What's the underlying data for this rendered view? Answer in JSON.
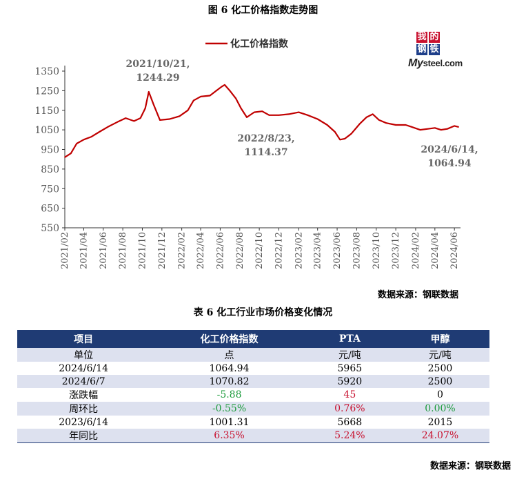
{
  "chart_title": "图 6 化工价格指数走势图",
  "logo": {
    "chars": [
      "我",
      "的",
      "钢",
      "铁"
    ],
    "brand_prefix": "My",
    "brand_suffix": "steel.com"
  },
  "source_label_chart": "数据来源：钢联数据",
  "table_title": "表 6 化工行业市场价格变化情况",
  "source_label_table": "数据来源：钢联数据",
  "colors": {
    "line": "#c00000",
    "header_bg": "#1f3b74",
    "alt_row": "#dde1ef",
    "up": "#c8102e",
    "down": "#1a9a3a"
  },
  "chart_data": {
    "type": "line",
    "legend": "化工价格指数",
    "legend_position": "top",
    "grid": false,
    "ylim": [
      550,
      1350
    ],
    "yticks": [
      550,
      650,
      750,
      850,
      950,
      1050,
      1150,
      1250,
      1350
    ],
    "xlim": [
      "2021/02",
      "2024/06/20"
    ],
    "xticks": [
      "2021/02",
      "2021/04",
      "2021/06",
      "2021/08",
      "2021/10",
      "2021/12",
      "2022/02",
      "2022/04",
      "2022/06",
      "2022/08",
      "2022/10",
      "2022/12",
      "2023/02",
      "2023/04",
      "2023/06",
      "2023/08",
      "2023/10",
      "2023/12",
      "2024/02",
      "2024/04",
      "2024/06"
    ],
    "series": [
      {
        "name": "化工价格指数",
        "x": [
          "2021/02/01",
          "2021/02/20",
          "2021/03/10",
          "2021/04/01",
          "2021/04/25",
          "2021/05/20",
          "2021/06/15",
          "2021/07/15",
          "2021/08/10",
          "2021/09/05",
          "2021/09/25",
          "2021/10/10",
          "2021/10/21",
          "2021/11/05",
          "2021/11/25",
          "2021/12/25",
          "2022/01/25",
          "2022/02/20",
          "2022/03/10",
          "2022/04/01",
          "2022/04/30",
          "2022/05/20",
          "2022/06/05",
          "2022/06/15",
          "2022/07/01",
          "2022/07/20",
          "2022/08/05",
          "2022/08/23",
          "2022/09/15",
          "2022/10/10",
          "2022/11/01",
          "2022/12/01",
          "2023/01/01",
          "2023/02/01",
          "2023/03/01",
          "2023/04/01",
          "2023/05/01",
          "2023/05/25",
          "2023/06/10",
          "2023/06/25",
          "2023/07/15",
          "2023/08/10",
          "2023/09/01",
          "2023/09/20",
          "2023/10/10",
          "2023/11/01",
          "2023/12/01",
          "2024/01/01",
          "2024/01/20",
          "2024/02/15",
          "2024/03/10",
          "2024/04/01",
          "2024/04/20",
          "2024/05/10",
          "2024/06/01",
          "2024/06/14"
        ],
        "values": [
          910,
          930,
          980,
          1000,
          1015,
          1040,
          1065,
          1090,
          1110,
          1095,
          1110,
          1160,
          1244.29,
          1180,
          1100,
          1105,
          1120,
          1150,
          1200,
          1220,
          1225,
          1250,
          1270,
          1280,
          1250,
          1210,
          1160,
          1114.37,
          1140,
          1145,
          1125,
          1125,
          1130,
          1140,
          1125,
          1105,
          1075,
          1040,
          1000,
          1005,
          1030,
          1080,
          1115,
          1130,
          1100,
          1085,
          1075,
          1075,
          1065,
          1050,
          1055,
          1060,
          1050,
          1055,
          1070,
          1064.94
        ]
      }
    ],
    "annotations": [
      {
        "date": "2021/10/21",
        "text": "2021/10/21,",
        "text2": "1244.29"
      },
      {
        "date": "2022/08/23",
        "text": "2022/8/23,",
        "text2": "1114.37"
      },
      {
        "date": "2024/06/14",
        "text": "2024/6/14,",
        "text2": "1064.94"
      }
    ]
  },
  "table": {
    "headers": [
      "项目",
      "化工价格指数",
      "PTA",
      "甲醇"
    ],
    "rows": [
      {
        "cells": [
          "单位",
          "点",
          "元/吨",
          "元/吨"
        ],
        "tones": [
          "",
          "",
          "",
          ""
        ]
      },
      {
        "cells": [
          "2024/6/14",
          "1064.94",
          "5965",
          "2500"
        ],
        "tones": [
          "",
          "",
          "",
          ""
        ]
      },
      {
        "cells": [
          "2024/6/7",
          "1070.82",
          "5920",
          "2500"
        ],
        "tones": [
          "",
          "",
          "",
          ""
        ]
      },
      {
        "cells": [
          "涨跌幅",
          "-5.88",
          "45",
          "0"
        ],
        "tones": [
          "",
          "down",
          "up",
          ""
        ]
      },
      {
        "cells": [
          "周环比",
          "-0.55%",
          "0.76%",
          "0.00%"
        ],
        "tones": [
          "",
          "down",
          "up",
          "down"
        ]
      },
      {
        "cells": [
          "2023/6/14",
          "1001.31",
          "5668",
          "2015"
        ],
        "tones": [
          "",
          "",
          "",
          ""
        ]
      },
      {
        "cells": [
          "年同比",
          "6.35%",
          "5.24%",
          "24.07%"
        ],
        "tones": [
          "",
          "up",
          "up",
          "up"
        ]
      }
    ]
  }
}
